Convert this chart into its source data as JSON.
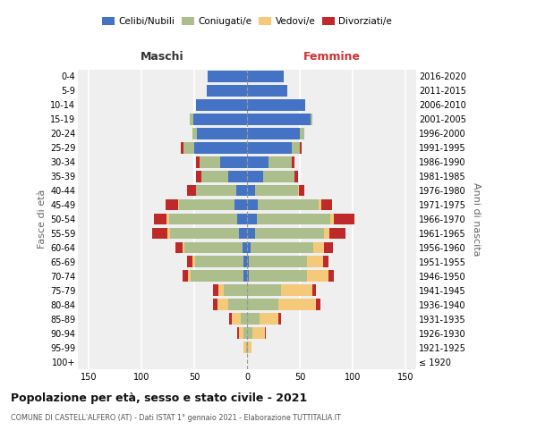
{
  "age_groups": [
    "100+",
    "95-99",
    "90-94",
    "85-89",
    "80-84",
    "75-79",
    "70-74",
    "65-69",
    "60-64",
    "55-59",
    "50-54",
    "45-49",
    "40-44",
    "35-39",
    "30-34",
    "25-29",
    "20-24",
    "15-19",
    "10-14",
    "5-9",
    "0-4"
  ],
  "birth_years": [
    "≤ 1920",
    "1921-1925",
    "1926-1930",
    "1931-1935",
    "1936-1940",
    "1941-1945",
    "1946-1950",
    "1951-1955",
    "1956-1960",
    "1961-1965",
    "1966-1970",
    "1971-1975",
    "1976-1980",
    "1981-1985",
    "1986-1990",
    "1991-1995",
    "1996-2000",
    "2001-2005",
    "2006-2010",
    "2011-2015",
    "2016-2020"
  ],
  "males": {
    "celibi": [
      0,
      0,
      0,
      0,
      0,
      0,
      3,
      3,
      4,
      8,
      9,
      12,
      10,
      18,
      25,
      50,
      47,
      51,
      48,
      38,
      37
    ],
    "coniugati": [
      0,
      1,
      3,
      6,
      18,
      22,
      50,
      46,
      55,
      65,
      65,
      52,
      38,
      25,
      20,
      10,
      5,
      3,
      0,
      0,
      0
    ],
    "vedovi": [
      0,
      2,
      5,
      8,
      10,
      5,
      3,
      3,
      2,
      2,
      2,
      1,
      0,
      0,
      0,
      0,
      0,
      0,
      0,
      0,
      0
    ],
    "divorziati": [
      0,
      0,
      1,
      3,
      4,
      5,
      5,
      5,
      7,
      15,
      12,
      12,
      9,
      5,
      3,
      3,
      0,
      0,
      0,
      0,
      0
    ]
  },
  "females": {
    "nubili": [
      0,
      0,
      0,
      0,
      0,
      0,
      2,
      2,
      3,
      8,
      9,
      10,
      8,
      15,
      20,
      42,
      50,
      60,
      55,
      38,
      35
    ],
    "coniugate": [
      0,
      1,
      5,
      12,
      30,
      32,
      55,
      55,
      60,
      65,
      70,
      58,
      40,
      30,
      22,
      8,
      4,
      2,
      0,
      0,
      0
    ],
    "vedove": [
      0,
      3,
      12,
      18,
      35,
      30,
      20,
      15,
      10,
      5,
      3,
      2,
      1,
      0,
      0,
      0,
      0,
      0,
      0,
      0,
      0
    ],
    "divorziate": [
      0,
      0,
      1,
      2,
      4,
      3,
      5,
      5,
      8,
      15,
      20,
      10,
      5,
      3,
      3,
      2,
      0,
      0,
      0,
      0,
      0
    ]
  },
  "colors": {
    "celibi": "#4472C4",
    "coniugati": "#ABBE8C",
    "vedovi": "#F5C97A",
    "divorziati": "#C0292A"
  },
  "xlim": 160,
  "title": "Popolazione per età, sesso e stato civile - 2021",
  "subtitle": "COMUNE DI CASTELL'ALFERO (AT) - Dati ISTAT 1° gennaio 2021 - Elaborazione TUTTITALIA.IT",
  "ylabel_left": "Fasce di età",
  "ylabel_right": "Anni di nascita",
  "header_left": "Maschi",
  "header_right": "Femmine",
  "bg_color": "#efefef"
}
